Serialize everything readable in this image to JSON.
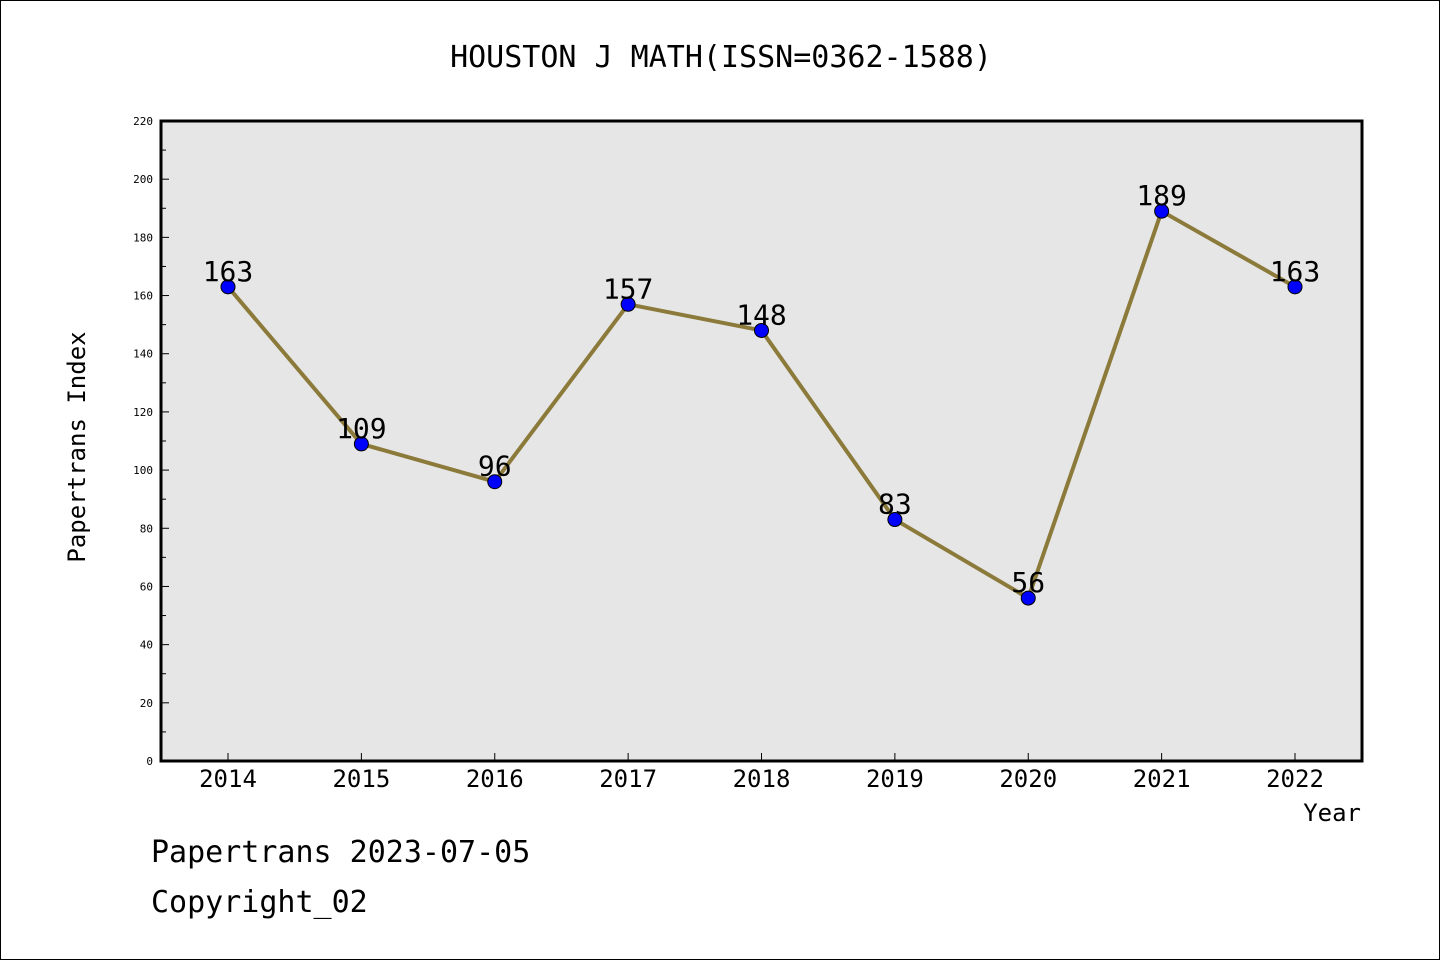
{
  "chart_data": {
    "type": "line",
    "title": "HOUSTON J MATH(ISSN=0362-1588)",
    "xlabel": "Year",
    "ylabel": "Papertrans Index",
    "categories": [
      "2014",
      "2015",
      "2016",
      "2017",
      "2018",
      "2019",
      "2020",
      "2021",
      "2022"
    ],
    "values": [
      163,
      109,
      96,
      157,
      148,
      83,
      56,
      189,
      163
    ],
    "ylim": [
      0,
      220
    ],
    "yticks": [
      0,
      20,
      40,
      60,
      80,
      100,
      120,
      140,
      160,
      180,
      200,
      220
    ],
    "grid": false,
    "data_labels": true,
    "colors": {
      "line": "#8b7a3a",
      "marker": "#0000ff",
      "plot_background": "#e6e6e6"
    }
  },
  "footer": {
    "line1": "Papertrans 2023-07-05",
    "line2": "Copyright_02"
  }
}
